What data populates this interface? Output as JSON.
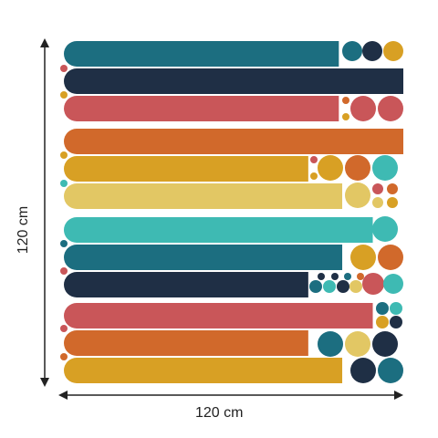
{
  "dimensions": {
    "width_label": "120 cm",
    "height_label": "120 cm"
  },
  "palette": {
    "teal_dark": "#1c6e80",
    "navy": "#1f2f45",
    "coral": "#c95659",
    "orange": "#d1692b",
    "mustard": "#d8a024",
    "sand": "#e2c764",
    "turquoise": "#3ebab3",
    "arrow": "#222222"
  },
  "bars": [
    {
      "color": "teal_dark",
      "length": 0.81,
      "right_shape": "square"
    },
    {
      "color": "navy",
      "length": 1.0,
      "right_shape": "square"
    },
    {
      "color": "coral",
      "length": 0.81,
      "right_shape": "square"
    },
    {
      "color": "orange",
      "length": 1.0,
      "right_shape": "square"
    },
    {
      "color": "mustard",
      "length": 0.72,
      "right_shape": "square"
    },
    {
      "color": "sand",
      "length": 0.82,
      "right_shape": "square"
    },
    {
      "color": "turquoise",
      "length": 0.91,
      "right_shape": "square"
    },
    {
      "color": "teal_dark",
      "length": 0.82,
      "right_shape": "square"
    },
    {
      "color": "navy",
      "length": 0.72,
      "right_shape": "square"
    },
    {
      "color": "coral",
      "length": 0.91,
      "right_shape": "square"
    },
    {
      "color": "orange",
      "length": 0.72,
      "right_shape": "square"
    },
    {
      "color": "mustard",
      "length": 0.82,
      "right_shape": "square"
    }
  ]
}
